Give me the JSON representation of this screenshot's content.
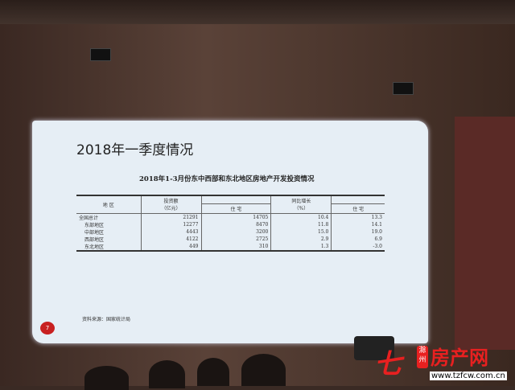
{
  "slide": {
    "title": "2018年一季度情况",
    "table_title": "2018年1-3月份东中西部和东北地区房地产开发投资情况",
    "headers": {
      "region": "地 区",
      "investment": "投资额\n（亿元）",
      "residential": "住 宅",
      "growth": "同比增长\n（%）",
      "growth_residential": "住 宅"
    },
    "rows": [
      {
        "region": "全国总计",
        "investment": "21291",
        "residential": "14705",
        "growth": "10.4",
        "growth_residential": "13.3"
      },
      {
        "region": "东部地区",
        "investment": "12277",
        "residential": "8470",
        "growth": "11.8",
        "growth_residential": "14.1"
      },
      {
        "region": "中部地区",
        "investment": "4443",
        "residential": "3200",
        "growth": "15.0",
        "growth_residential": "19.0"
      },
      {
        "region": "西部地区",
        "investment": "4122",
        "residential": "2725",
        "growth": "2.9",
        "growth_residential": "6.9"
      },
      {
        "region": "东北地区",
        "investment": "449",
        "residential": "310",
        "growth": "1.3",
        "growth_residential": "-3.0"
      }
    ],
    "source": "资料来源：国家统计局",
    "page_number": "7"
  },
  "watermark": {
    "city": "滁州",
    "name": "房产网",
    "url": "www.tzfcw.com.cn"
  },
  "colors": {
    "brand_red": "#e82020",
    "slide_bg": "#e6eef5"
  }
}
